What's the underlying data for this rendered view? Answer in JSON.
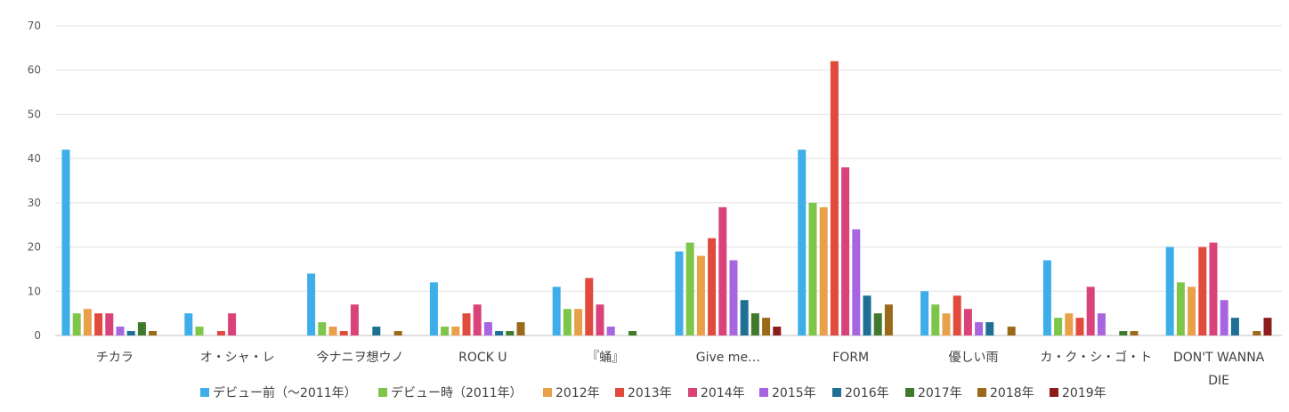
{
  "chart_data": {
    "type": "bar",
    "ylim": [
      0,
      70
    ],
    "yticks": [
      0,
      10,
      20,
      30,
      40,
      50,
      60,
      70
    ],
    "grid": true,
    "legend_position": "bottom",
    "categories": [
      [
        "チカラ"
      ],
      [
        "オ・シャ・レ"
      ],
      [
        "今ナニヲ想ウノ"
      ],
      [
        "ROCK U"
      ],
      [
        "『蛹』"
      ],
      [
        "Give me…"
      ],
      [
        "FORM"
      ],
      [
        "優しい雨"
      ],
      [
        "カ・ク・シ・ゴ・ト"
      ],
      [
        "DON'T WANNA",
        "DIE"
      ]
    ],
    "series": [
      {
        "name": "デビュー前（～2011年）",
        "color": "#3daee9",
        "values": [
          42,
          5,
          14,
          12,
          11,
          19,
          42,
          10,
          17,
          20
        ]
      },
      {
        "name": "デビュー時（2011年）",
        "color": "#7dc64a",
        "values": [
          5,
          2,
          3,
          2,
          6,
          21,
          30,
          7,
          4,
          12
        ]
      },
      {
        "name": "2012年",
        "color": "#e8a04a",
        "values": [
          6,
          0,
          2,
          2,
          6,
          18,
          29,
          5,
          5,
          11
        ]
      },
      {
        "name": "2013年",
        "color": "#e04b3d",
        "values": [
          5,
          1,
          1,
          5,
          13,
          22,
          62,
          9,
          4,
          20
        ]
      },
      {
        "name": "2014年",
        "color": "#d9437a",
        "values": [
          5,
          5,
          7,
          7,
          7,
          29,
          38,
          6,
          11,
          21
        ]
      },
      {
        "name": "2015年",
        "color": "#a865e0",
        "values": [
          2,
          0,
          0,
          3,
          2,
          17,
          24,
          3,
          5,
          8
        ]
      },
      {
        "name": "2016年",
        "color": "#1f6f94",
        "values": [
          1,
          0,
          2,
          1,
          0,
          8,
          9,
          3,
          0,
          4
        ]
      },
      {
        "name": "2017年",
        "color": "#3f7a2c",
        "values": [
          3,
          0,
          0,
          1,
          1,
          5,
          5,
          0,
          1,
          0
        ]
      },
      {
        "name": "2018年",
        "color": "#9a6a1a",
        "values": [
          1,
          0,
          1,
          3,
          0,
          4,
          7,
          2,
          1,
          1
        ]
      },
      {
        "name": "2019年",
        "color": "#8e1c1c",
        "values": [
          0,
          0,
          0,
          0,
          0,
          2,
          0,
          0,
          0,
          4
        ]
      }
    ]
  }
}
